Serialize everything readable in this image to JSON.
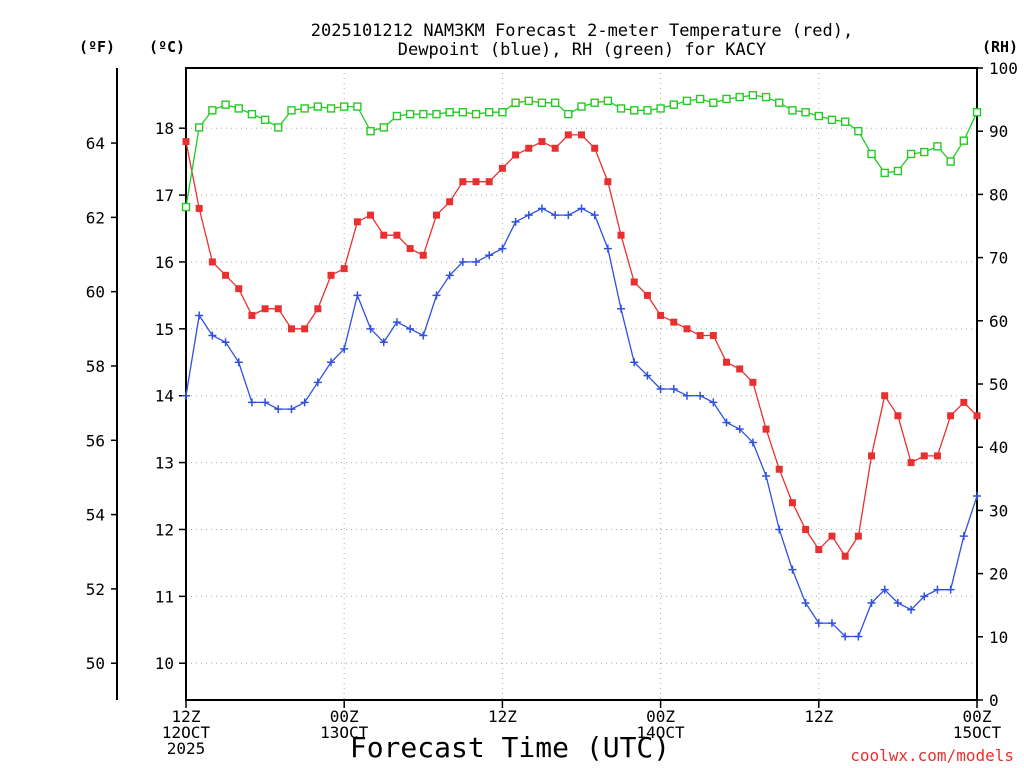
{
  "chart_data": {
    "type": "line",
    "title_line1": "2025101212 NAM3KM Forecast 2-meter Temperature (red),",
    "title_line2": "Dewpoint (blue), RH (green) for KACY",
    "xlabel": "Forecast Time (UTC)",
    "watermark": "coolwx.com/models",
    "left_axis_f_label": "(ºF)",
    "left_axis_c_label": "(ºC)",
    "right_axis_label": "(RH)",
    "xlim": [
      0,
      60
    ],
    "ylim_c": [
      9.45,
      18.9
    ],
    "ylim_rh": [
      0,
      100
    ],
    "x_ticks": [
      {
        "x": 0,
        "line1": "12Z",
        "line2": "12OCT",
        "line3": "2025"
      },
      {
        "x": 12,
        "line1": "00Z",
        "line2": "13OCT",
        "line3": ""
      },
      {
        "x": 24,
        "line1": "12Z",
        "line2": "",
        "line3": ""
      },
      {
        "x": 36,
        "line1": "00Z",
        "line2": "14OCT",
        "line3": ""
      },
      {
        "x": 48,
        "line1": "12Z",
        "line2": "",
        "line3": ""
      },
      {
        "x": 60,
        "line1": "00Z",
        "line2": "15OCT",
        "line3": ""
      }
    ],
    "celsius_ticks": [
      10,
      11,
      12,
      13,
      14,
      15,
      16,
      17,
      18
    ],
    "fahrenheit_ticks": [
      50,
      52,
      54,
      56,
      58,
      60,
      62,
      64
    ],
    "rh_ticks": [
      0,
      10,
      20,
      30,
      40,
      50,
      60,
      70,
      80,
      90,
      100
    ],
    "series": [
      {
        "name": "Temperature",
        "units": "C",
        "color": "#e83030",
        "marker": "filled-square",
        "x": [
          0,
          1,
          2,
          3,
          4,
          5,
          6,
          7,
          8,
          9,
          10,
          11,
          12,
          13,
          14,
          15,
          16,
          17,
          18,
          19,
          20,
          21,
          22,
          23,
          24,
          25,
          26,
          27,
          28,
          29,
          30,
          31,
          32,
          33,
          34,
          35,
          36,
          37,
          38,
          39,
          40,
          41,
          42,
          43,
          44,
          45,
          46,
          47,
          48,
          49,
          50,
          51,
          52,
          53,
          54,
          55,
          56,
          57,
          58,
          59,
          60
        ],
        "values": [
          17.8,
          16.8,
          16.0,
          15.8,
          15.6,
          15.2,
          15.3,
          15.3,
          15.0,
          15.0,
          15.3,
          15.8,
          15.9,
          16.6,
          16.7,
          16.4,
          16.4,
          16.2,
          16.1,
          16.7,
          16.9,
          17.2,
          17.2,
          17.2,
          17.4,
          17.6,
          17.7,
          17.8,
          17.7,
          17.9,
          17.9,
          17.7,
          17.2,
          16.4,
          15.7,
          15.5,
          15.2,
          15.1,
          15.0,
          14.9,
          14.9,
          14.5,
          14.4,
          14.2,
          13.5,
          12.9,
          12.4,
          12.0,
          11.7,
          11.9,
          11.6,
          11.9,
          13.1,
          14.0,
          13.7,
          13.0,
          13.1,
          13.1,
          13.7,
          13.9,
          13.7
        ]
      },
      {
        "name": "Dewpoint",
        "units": "C",
        "color": "#3050e0",
        "marker": "plus",
        "x": [
          0,
          1,
          2,
          3,
          4,
          5,
          6,
          7,
          8,
          9,
          10,
          11,
          12,
          13,
          14,
          15,
          16,
          17,
          18,
          19,
          20,
          21,
          22,
          23,
          24,
          25,
          26,
          27,
          28,
          29,
          30,
          31,
          32,
          33,
          34,
          35,
          36,
          37,
          38,
          39,
          40,
          41,
          42,
          43,
          44,
          45,
          46,
          47,
          48,
          49,
          50,
          51,
          52,
          53,
          54,
          55,
          56,
          57,
          58,
          59,
          60
        ],
        "values": [
          14.0,
          15.2,
          14.9,
          14.8,
          14.5,
          13.9,
          13.9,
          13.8,
          13.8,
          13.9,
          14.2,
          14.5,
          14.7,
          15.5,
          15.0,
          14.8,
          15.1,
          15.0,
          14.9,
          15.5,
          15.8,
          16.0,
          16.0,
          16.1,
          16.2,
          16.6,
          16.7,
          16.8,
          16.7,
          16.7,
          16.8,
          16.7,
          16.2,
          15.3,
          14.5,
          14.3,
          14.1,
          14.1,
          14.0,
          14.0,
          13.9,
          13.6,
          13.5,
          13.3,
          12.8,
          12.0,
          11.4,
          10.9,
          10.6,
          10.6,
          10.4,
          10.4,
          10.9,
          11.1,
          10.9,
          10.8,
          11.0,
          11.1,
          11.1,
          11.9,
          12.5
        ]
      },
      {
        "name": "RH",
        "units": "%",
        "color": "#22cc22",
        "marker": "open-square",
        "axis": "right",
        "x": [
          0,
          1,
          2,
          3,
          4,
          5,
          6,
          7,
          8,
          9,
          10,
          11,
          12,
          13,
          14,
          15,
          16,
          17,
          18,
          19,
          20,
          21,
          22,
          23,
          24,
          25,
          26,
          27,
          28,
          29,
          30,
          31,
          32,
          33,
          34,
          35,
          36,
          37,
          38,
          39,
          40,
          41,
          42,
          43,
          44,
          45,
          46,
          47,
          48,
          49,
          50,
          51,
          52,
          53,
          54,
          55,
          56,
          57,
          58,
          59,
          60
        ],
        "values": [
          78.0,
          90.6,
          93.3,
          94.2,
          93.6,
          92.7,
          91.8,
          90.6,
          93.3,
          93.6,
          93.9,
          93.6,
          93.9,
          93.9,
          90.0,
          90.6,
          92.4,
          92.7,
          92.7,
          92.7,
          93.0,
          93.0,
          92.7,
          93.0,
          93.0,
          94.5,
          94.8,
          94.5,
          94.5,
          92.7,
          93.9,
          94.5,
          94.8,
          93.6,
          93.3,
          93.3,
          93.6,
          94.2,
          94.8,
          95.1,
          94.5,
          95.1,
          95.4,
          95.7,
          95.4,
          94.5,
          93.3,
          93.0,
          92.4,
          91.8,
          91.5,
          90.0,
          86.4,
          83.4,
          83.7,
          86.4,
          86.7,
          87.6,
          85.2,
          88.5,
          93.0
        ]
      }
    ]
  }
}
